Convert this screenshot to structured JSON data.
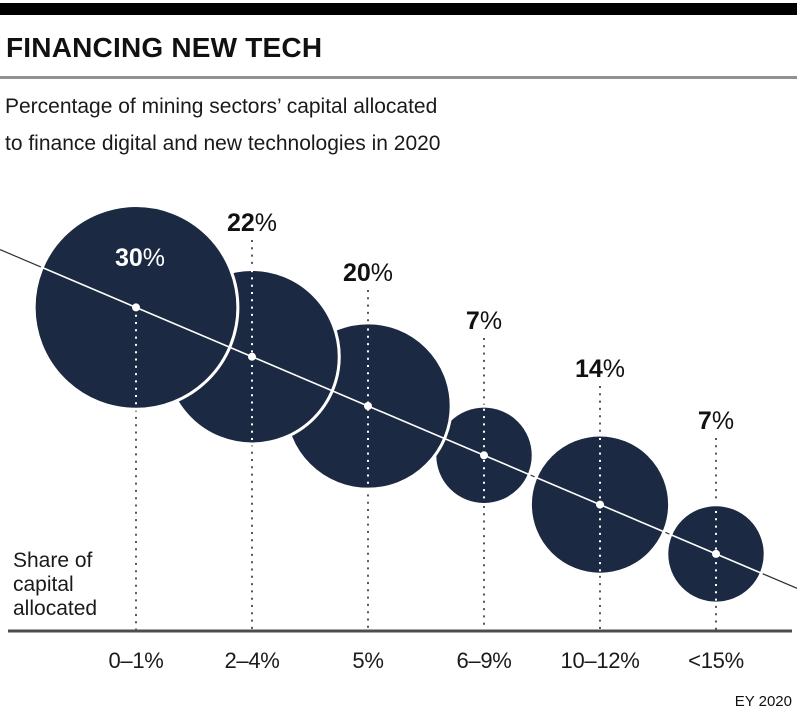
{
  "header": {
    "title": "FINANCING NEW TECH",
    "subtitle_line1": "Percentage of mining sectors’ capital allocated",
    "subtitle_line2": "to finance digital and new technologies in 2020"
  },
  "share_label": {
    "line1": "Share of",
    "line2": "capital",
    "line3": "allocated"
  },
  "footer": {
    "source": "EY 2020"
  },
  "colors": {
    "bubble": "#1b2a42",
    "bubble_stroke": "#ffffff",
    "top_bar": "#000000",
    "divider": "#919191",
    "axis_line": "#4d4d4d",
    "dotted_guide": "#575757",
    "trend_line": "#2f2f2f",
    "label_dark": "#111111",
    "label_light": "#ffffff",
    "tick_label": "#1a1a1a"
  },
  "chart_data": {
    "type": "bubble",
    "title": "FINANCING NEW TECH",
    "subtitle": "Percentage of mining sectors’ capital allocated to finance digital and new technologies in 2020",
    "categories": [
      "0–1%",
      "2–4%",
      "5%",
      "6–9%",
      "10–12%",
      "<15%"
    ],
    "values": [
      30,
      22,
      20,
      7,
      14,
      7
    ],
    "value_suffix": "%",
    "xlabel": "Share of capital allocated",
    "source": "EY 2020",
    "bubble_area_proportional_to_value": true,
    "first_label_inside_bubble": true,
    "legend": "none",
    "grid": "off"
  }
}
